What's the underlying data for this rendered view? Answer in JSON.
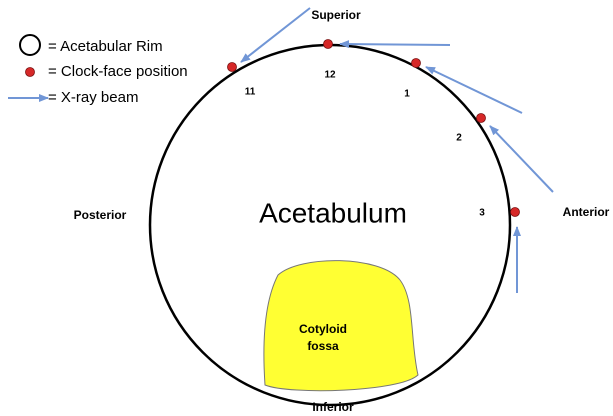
{
  "legend": [
    {
      "label": "= Acetabular Rim"
    },
    {
      "label": "= Clock-face position"
    },
    {
      "label": "= X-ray beam"
    }
  ],
  "directions": {
    "superior": "Superior",
    "posterior": "Posterior",
    "anterior": "Anterior",
    "inferior": "Inferior"
  },
  "center_label": "Acetabulum",
  "fossa": {
    "line1": "Cotyloid",
    "line2": "fossa"
  },
  "clock_positions": [
    "12",
    "11",
    "1",
    "2",
    "3"
  ]
}
